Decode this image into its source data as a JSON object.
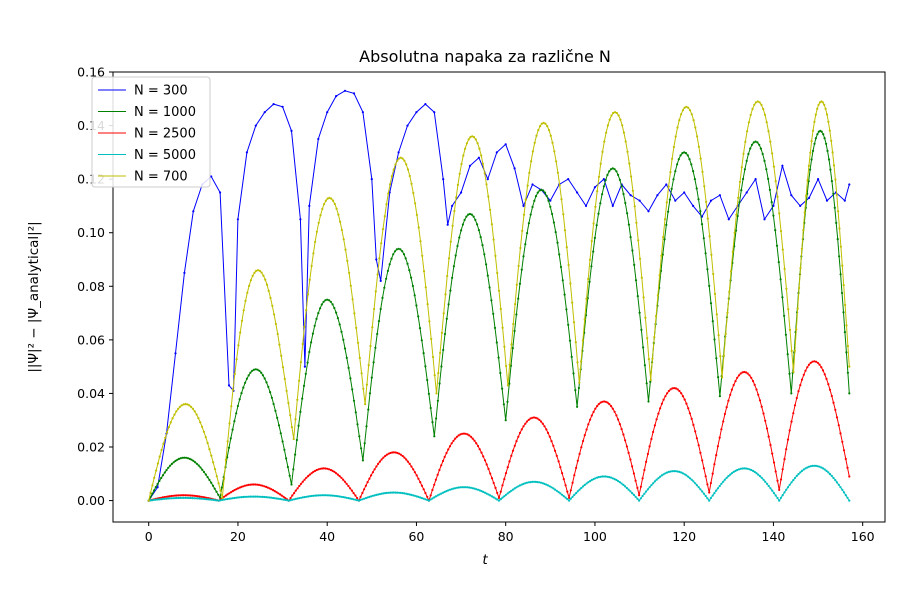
{
  "chart_data": {
    "type": "line",
    "title": "Absolutna napaka za različne N",
    "xlabel": "t",
    "ylabel": "||Ψ|² − |Ψ_analytical|²|",
    "xlim": [
      -8,
      165
    ],
    "ylim": [
      -0.008,
      0.16
    ],
    "xticks": [
      0,
      20,
      40,
      60,
      80,
      100,
      120,
      140,
      160
    ],
    "yticks": [
      0.0,
      0.02,
      0.04,
      0.06,
      0.08,
      0.1,
      0.12,
      0.14,
      0.16
    ],
    "ytick_labels": [
      "0.00",
      "0.02",
      "0.04",
      "0.06",
      "0.08",
      "0.10",
      "0.12",
      "0.14",
      "0.16"
    ],
    "grid": false,
    "legend_position": "top-left",
    "t_max": 157,
    "series": [
      {
        "name": "N = 300",
        "color": "#0000ff",
        "t": [
          0,
          2,
          4,
          6,
          8,
          10,
          12,
          14,
          16,
          18,
          19,
          20,
          22,
          24,
          26,
          28,
          30,
          32,
          34,
          35,
          36,
          38,
          40,
          42,
          44,
          46,
          48,
          50,
          51,
          52,
          54,
          56,
          58,
          60,
          62,
          64,
          66,
          67,
          68,
          70,
          72,
          74,
          76,
          78,
          80,
          82,
          84,
          86,
          88,
          90,
          92,
          94,
          96,
          98,
          100,
          102,
          104,
          106,
          108,
          110,
          112,
          114,
          116,
          118,
          120,
          122,
          124,
          126,
          128,
          130,
          132,
          134,
          136,
          138,
          140,
          142,
          144,
          146,
          148,
          150,
          152,
          154,
          156,
          157
        ],
        "y": [
          0.0,
          0.005,
          0.025,
          0.055,
          0.085,
          0.108,
          0.118,
          0.121,
          0.115,
          0.043,
          0.041,
          0.105,
          0.13,
          0.14,
          0.145,
          0.148,
          0.147,
          0.138,
          0.105,
          0.05,
          0.11,
          0.135,
          0.145,
          0.151,
          0.153,
          0.152,
          0.145,
          0.12,
          0.09,
          0.082,
          0.115,
          0.13,
          0.14,
          0.145,
          0.148,
          0.145,
          0.12,
          0.103,
          0.11,
          0.115,
          0.125,
          0.128,
          0.12,
          0.13,
          0.133,
          0.124,
          0.11,
          0.118,
          0.116,
          0.112,
          0.118,
          0.12,
          0.115,
          0.11,
          0.117,
          0.12,
          0.11,
          0.118,
          0.114,
          0.112,
          0.108,
          0.114,
          0.118,
          0.112,
          0.115,
          0.11,
          0.106,
          0.112,
          0.114,
          0.105,
          0.11,
          0.115,
          0.12,
          0.105,
          0.11,
          0.125,
          0.114,
          0.11,
          0.113,
          0.12,
          0.112,
          0.115,
          0.112,
          0.118
        ]
      },
      {
        "name": "N = 1000",
        "color": "#008000",
        "period": 16,
        "first_min_t": 16,
        "amplitude": [
          0.016,
          0.049,
          0.075,
          0.094,
          0.107,
          0.116,
          0.124,
          0.13,
          0.134,
          0.138
        ],
        "minima": [
          0.0,
          0.001,
          0.006,
          0.015,
          0.024,
          0.03,
          0.035,
          0.037,
          0.039,
          0.04,
          0.04
        ]
      },
      {
        "name": "N = 2500",
        "color": "#ff0000",
        "period": 15.7,
        "first_min_t": 15.7,
        "amplitude": [
          0.002,
          0.006,
          0.012,
          0.018,
          0.025,
          0.031,
          0.037,
          0.042,
          0.048,
          0.052
        ],
        "minima": [
          0.0,
          0.0,
          0.0,
          0.0,
          0.0,
          0.001,
          0.001,
          0.002,
          0.003,
          0.004,
          0.009
        ]
      },
      {
        "name": "N = 5000",
        "color": "#00bfbf",
        "period": 15.7,
        "first_min_t": 15.7,
        "amplitude": [
          0.001,
          0.0015,
          0.002,
          0.003,
          0.005,
          0.007,
          0.009,
          0.011,
          0.012,
          0.013
        ],
        "minima": [
          0.0,
          0.0,
          0.0,
          0.0,
          0.0,
          0.0,
          0.0,
          0.0,
          0.0,
          0.0,
          0.0
        ]
      },
      {
        "name": "N = 700",
        "color": "#bfbf00",
        "period": 16,
        "first_min_t": 16.5,
        "amplitude": [
          0.036,
          0.086,
          0.113,
          0.128,
          0.136,
          0.141,
          0.145,
          0.147,
          0.149,
          0.149
        ],
        "minima": [
          0.0,
          0.001,
          0.023,
          0.036,
          0.04,
          0.043,
          0.044,
          0.045,
          0.046,
          0.048,
          0.05
        ]
      }
    ]
  }
}
